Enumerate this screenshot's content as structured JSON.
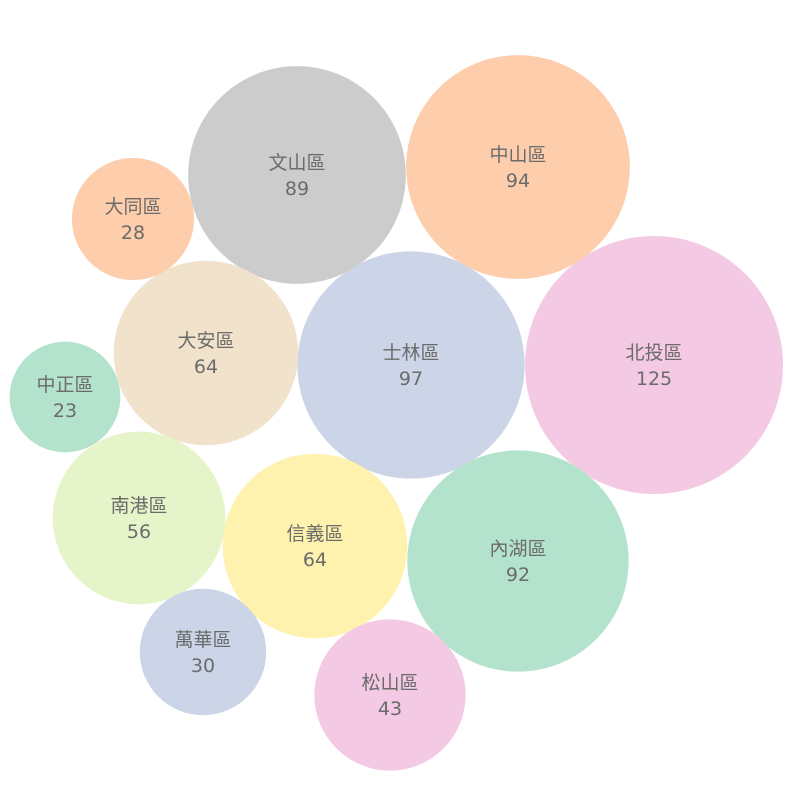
{
  "chart_data": {
    "type": "bubble",
    "title": "",
    "series": [
      {
        "name": "北投區",
        "value": 125,
        "color": "#f3c9e4"
      },
      {
        "name": "士林區",
        "value": 97,
        "color": "#cbd5e7"
      },
      {
        "name": "中山區",
        "value": 94,
        "color": "#fdcdac"
      },
      {
        "name": "內湖區",
        "value": 92,
        "color": "#b3e2cd"
      },
      {
        "name": "文山區",
        "value": 89,
        "color": "#cccccc"
      },
      {
        "name": "大安區",
        "value": 64,
        "color": "#f1e2cc"
      },
      {
        "name": "信義區",
        "value": 64,
        "color": "#fff2ae"
      },
      {
        "name": "南港區",
        "value": 56,
        "color": "#e6f5c9"
      },
      {
        "name": "松山區",
        "value": 43,
        "color": "#f3c9e4"
      },
      {
        "name": "萬華區",
        "value": 30,
        "color": "#cbd5e7"
      },
      {
        "name": "大同區",
        "value": 28,
        "color": "#fdcdac"
      },
      {
        "name": "中正區",
        "value": 23,
        "color": "#b3e2cd"
      }
    ]
  }
}
